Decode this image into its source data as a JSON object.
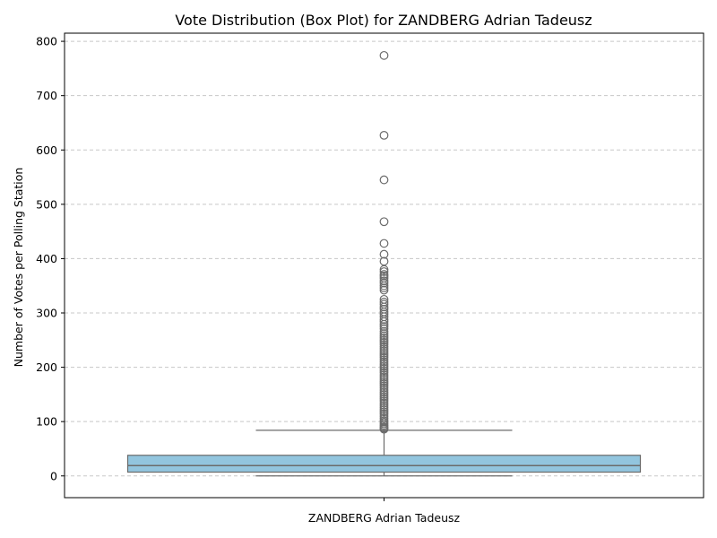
{
  "chart_data": {
    "type": "box",
    "title": "Vote Distribution (Box Plot) for ZANDBERG Adrian Tadeusz",
    "xlabel": "ZANDBERG Adrian Tadeusz",
    "ylabel": "Number of Votes per Polling Station",
    "categories": [
      "ZANDBERG Adrian Tadeusz"
    ],
    "ylim": [
      -40,
      815
    ],
    "yticks": [
      0,
      100,
      200,
      300,
      400,
      500,
      600,
      700,
      800
    ],
    "grid": {
      "axis": "y",
      "style": "dashed"
    },
    "box": {
      "min": 0,
      "q1": 7,
      "median": 19,
      "q3": 38,
      "whisker_high": 84
    },
    "outliers": [
      774,
      627,
      545,
      468,
      428,
      408,
      395,
      380,
      376,
      371,
      368,
      364,
      359,
      355,
      350,
      346,
      342,
      325,
      320,
      316,
      311,
      307,
      302,
      298,
      293,
      288,
      284,
      279,
      275,
      271,
      266,
      262,
      258,
      254,
      250,
      246,
      242,
      238,
      234,
      230,
      226,
      222,
      218,
      214,
      210,
      206,
      202,
      198,
      194,
      190,
      186,
      182,
      178,
      174,
      170,
      166,
      162,
      158,
      154,
      150,
      146,
      142,
      138,
      134,
      130,
      126,
      122,
      118,
      114,
      110,
      106,
      102,
      99,
      96,
      93,
      90,
      88,
      86
    ],
    "colors": {
      "box_fill": "#92c5de",
      "box_edge": "#6b6b6b",
      "grid": "#c8c8c8",
      "axis": "#000000"
    }
  }
}
